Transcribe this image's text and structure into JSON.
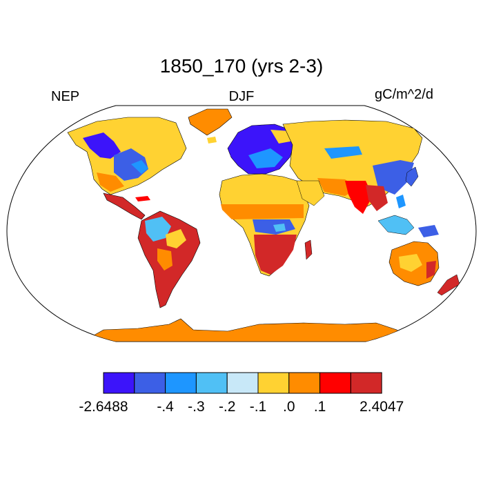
{
  "title": "1850_170 (yrs 2-3)",
  "left_label": "NEP",
  "center_label": "DJF",
  "right_label": "gC/m^2/d",
  "colorbar": {
    "colors": [
      "#3c14fa",
      "#3c5fe6",
      "#1e96ff",
      "#50c0f5",
      "#c8e8f8",
      "#ffd232",
      "#ff8c00",
      "#ff0000",
      "#d22828"
    ],
    "tick_labels": [
      "-2.6488",
      "-.4",
      "-.3",
      "-.2",
      "-.1",
      ".0",
      ".1",
      "2.4047"
    ]
  },
  "map_colors": {
    "ocean": "#ffffff",
    "border": "#000000"
  }
}
